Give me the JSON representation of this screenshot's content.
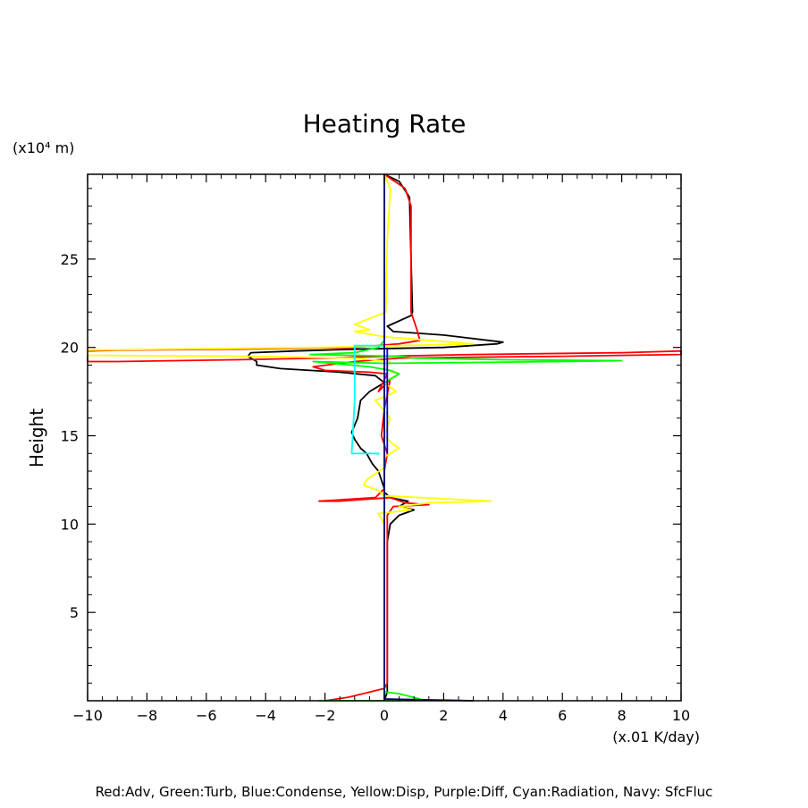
{
  "chart_data": {
    "type": "line",
    "title": "Heating Rate",
    "xlabel": "(x.01 K/day)",
    "ylabel": "Height",
    "yunit_label": "(x10⁴ m)",
    "xlim": [
      -10,
      10
    ],
    "ylim": [
      0,
      29.8
    ],
    "xticks": [
      -10,
      -8,
      -6,
      -4,
      -2,
      0,
      2,
      4,
      6,
      8,
      10
    ],
    "yticks": [
      5,
      10,
      15,
      20,
      25
    ],
    "grid": false,
    "legend_text": "Red:Adv, Green:Turb, Blue:Condense, Yellow:Disp, Purple:Diff, Cyan:Radiation, Navy: SfcFluc",
    "series": [
      {
        "color": "#000000",
        "points": [
          [
            0.0,
            29.8
          ],
          [
            0.5,
            29.4
          ],
          [
            0.85,
            28.5
          ],
          [
            0.9,
            25
          ],
          [
            0.95,
            22
          ],
          [
            0.9,
            21.8
          ],
          [
            0.1,
            21.2
          ],
          [
            0.3,
            20.9
          ],
          [
            2.0,
            20.7
          ],
          [
            4.0,
            20.3
          ],
          [
            3.8,
            20.2
          ],
          [
            2.0,
            20.0
          ],
          [
            -1.0,
            19.9
          ],
          [
            -3.0,
            19.8
          ],
          [
            -4.5,
            19.7
          ],
          [
            -4.6,
            19.5
          ],
          [
            -4.3,
            19.2
          ],
          [
            -4.3,
            19.0
          ],
          [
            -3.5,
            18.8
          ],
          [
            -1.5,
            18.6
          ],
          [
            -0.3,
            18.4
          ],
          [
            0.0,
            18.0
          ],
          [
            -0.5,
            17.5
          ],
          [
            -0.8,
            17.0
          ],
          [
            -0.9,
            16.0
          ],
          [
            -1.1,
            15.2
          ],
          [
            -1.0,
            14.8
          ],
          [
            -0.8,
            14.3
          ],
          [
            -0.6,
            14.0
          ],
          [
            -0.4,
            13.4
          ],
          [
            -0.2,
            13.0
          ],
          [
            -0.1,
            12.5
          ],
          [
            0.0,
            12.0
          ],
          [
            0.0,
            11.8
          ],
          [
            0.2,
            11.5
          ],
          [
            0.8,
            11.3
          ],
          [
            0.5,
            11.0
          ],
          [
            1.0,
            10.8
          ],
          [
            0.5,
            10.5
          ],
          [
            0.2,
            10.0
          ],
          [
            0.1,
            9.0
          ],
          [
            0.1,
            2.0
          ],
          [
            0.1,
            0.5
          ],
          [
            0.0,
            0.0
          ]
        ]
      },
      {
        "color": "#ff0000",
        "points": [
          [
            0.0,
            29.8
          ],
          [
            0.7,
            29.0
          ],
          [
            0.9,
            28.0
          ],
          [
            0.9,
            22.0
          ],
          [
            1.1,
            21.0
          ],
          [
            1.2,
            20.4
          ],
          [
            0.5,
            20.2
          ],
          [
            -1.0,
            20.0
          ],
          [
            -5.0,
            19.9
          ],
          [
            -9.0,
            19.85
          ],
          [
            -10.0,
            19.8
          ],
          [
            -10.0,
            19.2
          ],
          [
            -9.0,
            19.2
          ],
          [
            -5.0,
            19.3
          ],
          [
            -2.0,
            19.4
          ],
          [
            0.0,
            19.5
          ],
          [
            3.0,
            19.6
          ],
          [
            8.0,
            19.7
          ],
          [
            10.0,
            19.8
          ],
          [
            10.0,
            19.6
          ],
          [
            6.0,
            19.5
          ],
          [
            0.5,
            19.4
          ],
          [
            -1.0,
            19.2
          ],
          [
            -2.4,
            18.9
          ],
          [
            -2.0,
            18.7
          ],
          [
            -0.5,
            18.6
          ],
          [
            0.1,
            18.5
          ],
          [
            -0.2,
            17.5
          ],
          [
            0.2,
            18.2
          ],
          [
            0.0,
            16.5
          ],
          [
            -0.1,
            15.0
          ],
          [
            0.1,
            14.0
          ],
          [
            0.0,
            13.0
          ],
          [
            0.0,
            12.0
          ],
          [
            -0.3,
            11.5
          ],
          [
            -2.2,
            11.3
          ],
          [
            -1.5,
            11.3
          ],
          [
            0.2,
            11.5
          ],
          [
            0.7,
            11.2
          ],
          [
            1.5,
            11.1
          ],
          [
            0.3,
            11.0
          ],
          [
            0.1,
            10.5
          ],
          [
            0.1,
            10.0
          ],
          [
            0.1,
            1.0
          ],
          [
            0.0,
            0.7
          ],
          [
            -1.2,
            0.2
          ],
          [
            -2.0,
            0.0
          ]
        ]
      },
      {
        "color": "#ffff00",
        "points": [
          [
            0.0,
            29.8
          ],
          [
            0.2,
            29.0
          ],
          [
            0.1,
            26.0
          ],
          [
            0.05,
            22.0
          ],
          [
            -1.0,
            21.3
          ],
          [
            -0.5,
            21.0
          ],
          [
            -1.0,
            20.9
          ],
          [
            0.0,
            20.6
          ],
          [
            1.5,
            20.4
          ],
          [
            3.0,
            20.2
          ],
          [
            0.5,
            20.1
          ],
          [
            -2.0,
            20.0
          ],
          [
            -10.0,
            19.85
          ],
          [
            -10.0,
            19.55
          ],
          [
            -4.5,
            19.5
          ],
          [
            -1.0,
            19.4
          ],
          [
            0.2,
            19.2
          ],
          [
            0.0,
            18.8
          ],
          [
            0.3,
            18.6
          ],
          [
            0.5,
            18.5
          ],
          [
            0.0,
            18.0
          ],
          [
            0.4,
            17.5
          ],
          [
            -0.3,
            17.0
          ],
          [
            0.2,
            16.0
          ],
          [
            0.0,
            15.0
          ],
          [
            0.3,
            14.5
          ],
          [
            0.5,
            14.3
          ],
          [
            0.0,
            13.8
          ],
          [
            0.0,
            13.2
          ],
          [
            -0.6,
            12.5
          ],
          [
            -0.7,
            12.2
          ],
          [
            -0.2,
            11.9
          ],
          [
            0.0,
            11.6
          ],
          [
            1.2,
            11.5
          ],
          [
            3.6,
            11.3
          ],
          [
            1.5,
            11.2
          ],
          [
            0.5,
            11.0
          ],
          [
            0.9,
            10.8
          ],
          [
            -0.2,
            10.6
          ],
          [
            0.0,
            10.0
          ],
          [
            0.0,
            0.0
          ]
        ]
      },
      {
        "color": "#00ff00",
        "points": [
          [
            0.0,
            29.8
          ],
          [
            0.0,
            20.4
          ],
          [
            -0.2,
            20.0
          ],
          [
            -1.0,
            19.7
          ],
          [
            -2.5,
            19.6
          ],
          [
            0.5,
            19.5
          ],
          [
            1.0,
            19.4
          ],
          [
            4.0,
            19.3
          ],
          [
            8.0,
            19.25
          ],
          [
            6.0,
            19.2
          ],
          [
            0.0,
            19.1
          ],
          [
            -2.4,
            19.2
          ],
          [
            -0.5,
            18.9
          ],
          [
            0.2,
            18.7
          ],
          [
            0.5,
            18.5
          ],
          [
            0.0,
            18.0
          ],
          [
            0.0,
            1.0
          ],
          [
            0.0,
            0.5
          ],
          [
            0.5,
            0.4
          ],
          [
            1.2,
            0.1
          ],
          [
            0.5,
            0.0
          ],
          [
            -2.2,
            0.0
          ]
        ]
      },
      {
        "color": "#00ffff",
        "points": [
          [
            0.0,
            20.1
          ],
          [
            -1.0,
            20.1
          ],
          [
            -1.0,
            17.0
          ],
          [
            -1.1,
            14.0
          ],
          [
            -0.2,
            14.0
          ],
          [
            -0.2,
            13.9
          ]
        ]
      },
      {
        "color": "#0000ff",
        "points": [
          [
            0.1,
            20.0
          ],
          [
            0.1,
            14.0
          ]
        ]
      },
      {
        "color": "#000080",
        "points": [
          [
            0.0,
            29.8
          ],
          [
            0.0,
            0.0
          ]
        ]
      },
      {
        "color": "#000080",
        "points": [
          [
            0.0,
            0.1
          ],
          [
            1.5,
            0.05
          ],
          [
            3.0,
            0.0
          ]
        ]
      }
    ]
  }
}
